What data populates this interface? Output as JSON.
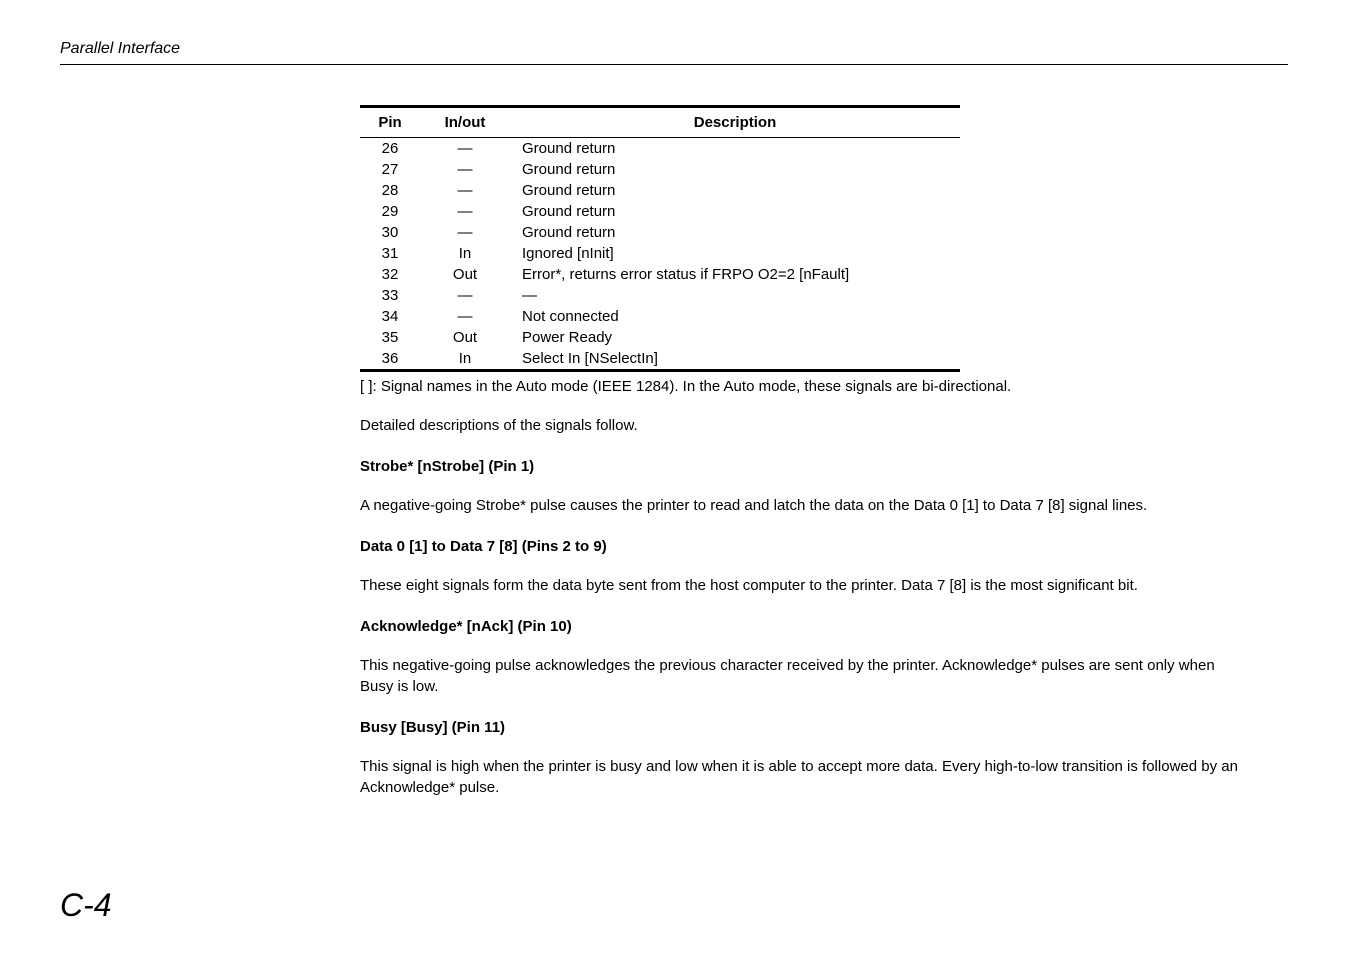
{
  "header": {
    "title": "Parallel Interface"
  },
  "table": {
    "columns": [
      "Pin",
      "In/out",
      "Description"
    ],
    "rows": [
      {
        "pin": "26",
        "inout": "—",
        "desc": "Ground return"
      },
      {
        "pin": "27",
        "inout": "—",
        "desc": "Ground return"
      },
      {
        "pin": "28",
        "inout": "—",
        "desc": "Ground return"
      },
      {
        "pin": "29",
        "inout": "—",
        "desc": "Ground return"
      },
      {
        "pin": "30",
        "inout": "—",
        "desc": "Ground return"
      },
      {
        "pin": "31",
        "inout": "In",
        "desc": "Ignored [nInit]"
      },
      {
        "pin": "32",
        "inout": "Out",
        "desc": "Error*, returns error status if FRPO O2=2 [nFault]"
      },
      {
        "pin": "33",
        "inout": "—",
        "desc": "—"
      },
      {
        "pin": "34",
        "inout": "—",
        "desc": "Not connected"
      },
      {
        "pin": "35",
        "inout": "Out",
        "desc": "Power Ready"
      },
      {
        "pin": "36",
        "inout": "In",
        "desc": "Select In [NSelectIn]"
      }
    ],
    "footnote": "[ ]: Signal names in the Auto mode (IEEE 1284). In the Auto mode, these signals are bi-directional."
  },
  "intro": "Detailed descriptions of the signals follow.",
  "sections": [
    {
      "heading": "Strobe* [nStrobe] (Pin 1)",
      "body": "A negative-going Strobe* pulse causes the printer to read and latch the data on the Data 0 [1] to Data 7 [8] signal lines."
    },
    {
      "heading": "Data 0 [1] to Data 7 [8] (Pins 2 to 9)",
      "body": "These eight signals form the data byte sent from the host computer to the printer. Data 7 [8] is the most significant bit."
    },
    {
      "heading": "Acknowledge* [nAck] (Pin 10)",
      "body": "This negative-going pulse acknowledges the previous character received by the printer. Acknowledge* pulses are sent only when Busy is low."
    },
    {
      "heading": "Busy [Busy] (Pin 11)",
      "body": "This signal is high when the printer is busy and low when it is able to accept more data. Every high-to-low transition is followed by an Acknowledge* pulse."
    }
  ],
  "pageNumber": "C-4"
}
